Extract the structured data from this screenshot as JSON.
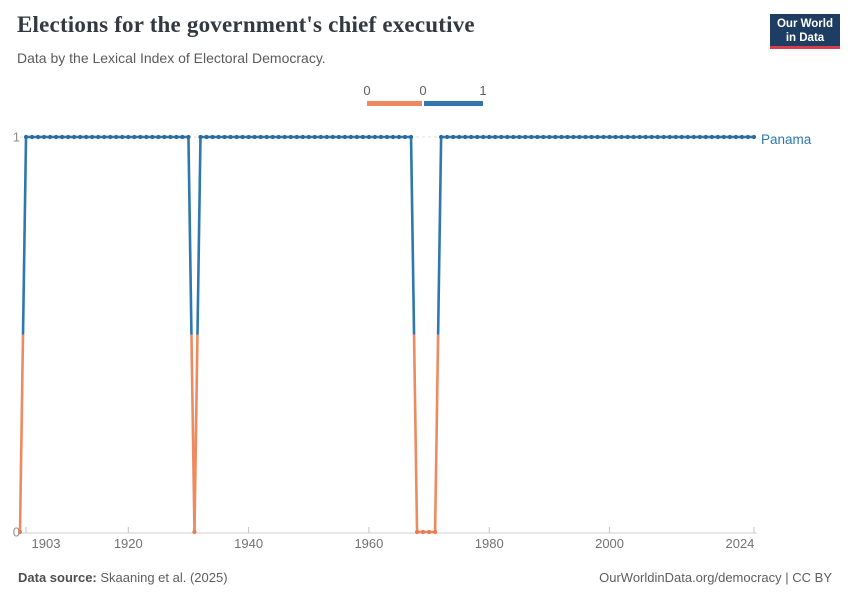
{
  "header": {
    "title": "Elections for the government's chief executive",
    "subtitle": "Data by the Lexical Index of Electoral Democracy.",
    "logo_line1": "Our World",
    "logo_line2": "in Data",
    "logo_bg": "#1d3d63",
    "logo_accent": "#d93c4c"
  },
  "legend": {
    "left_label": "0",
    "mid_label": "0",
    "right_label": "1",
    "orange": "#ee8a61",
    "blue": "#2f77ad"
  },
  "chart_data": {
    "type": "line",
    "title": "Elections for the government's chief executive",
    "series_label": "Panama",
    "xlabel": "",
    "ylabel": "",
    "xlim": [
      1902,
      2024
    ],
    "ylim": [
      0,
      1
    ],
    "x_tick_years": [
      1903,
      1920,
      1940,
      1960,
      1980,
      2000,
      2024
    ],
    "y_ticks": [
      0,
      1
    ],
    "grid": "dashed horizontal gridline at y=1, solid axis at y=0",
    "legend_position": "top-center",
    "values_by_period": [
      {
        "start": 1902,
        "end": 1902,
        "value": 0
      },
      {
        "start": 1903,
        "end": 1930,
        "value": 1
      },
      {
        "start": 1931,
        "end": 1931,
        "value": 0
      },
      {
        "start": 1932,
        "end": 1967,
        "value": 1
      },
      {
        "start": 1968,
        "end": 1971,
        "value": 0
      },
      {
        "start": 1972,
        "end": 2024,
        "value": 1
      }
    ],
    "value_colors": {
      "0": "#ee8a61",
      "1": "#2f77ad"
    },
    "marker_colors": {
      "0": "#e87b4f",
      "1": "#2a6a9c"
    }
  },
  "footer": {
    "source_label": "Data source:",
    "source_value": " Skaaning et al. (2025)",
    "credit": "OurWorldinData.org/democracy | CC BY"
  }
}
